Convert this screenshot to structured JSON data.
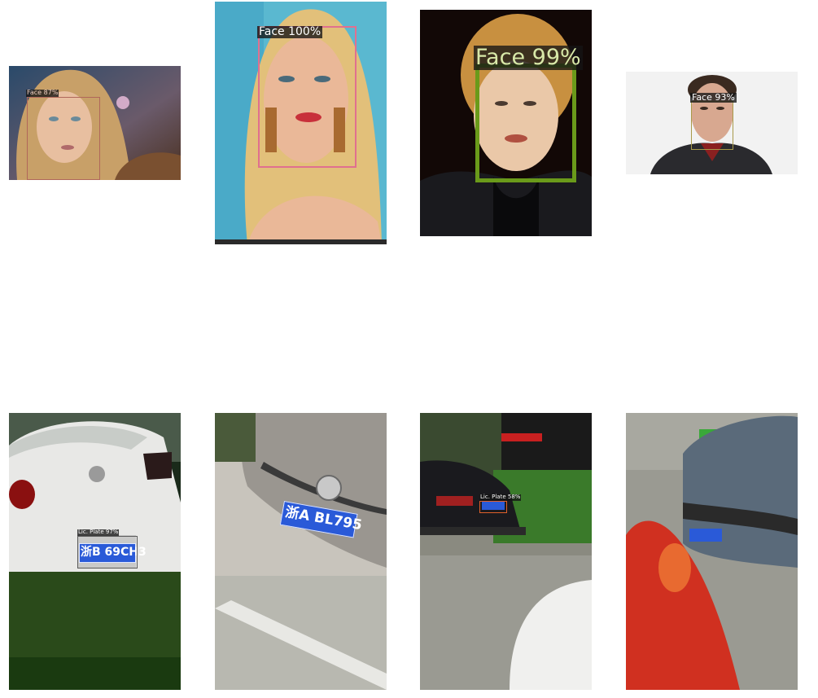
{
  "detections": [
    {
      "label": "Face 87%",
      "category": "face",
      "color": "#b0675a"
    },
    {
      "label": "Face 100%",
      "category": "face",
      "color": "#e0708f"
    },
    {
      "label": "Face 99%",
      "category": "face",
      "color": "#6a9a1a"
    },
    {
      "label": "Face 93%",
      "category": "face",
      "color": "#a89a4a"
    },
    {
      "label": "Lic. Plate 97%",
      "category": "license-plate",
      "color": "#5a5a5a"
    },
    {
      "label": "Lic. Plate 58%",
      "category": "license-plate",
      "color": "#e0602a"
    }
  ],
  "plates": [
    {
      "text": "浙B 69CH3"
    },
    {
      "text": "浙A BL795"
    }
  ]
}
